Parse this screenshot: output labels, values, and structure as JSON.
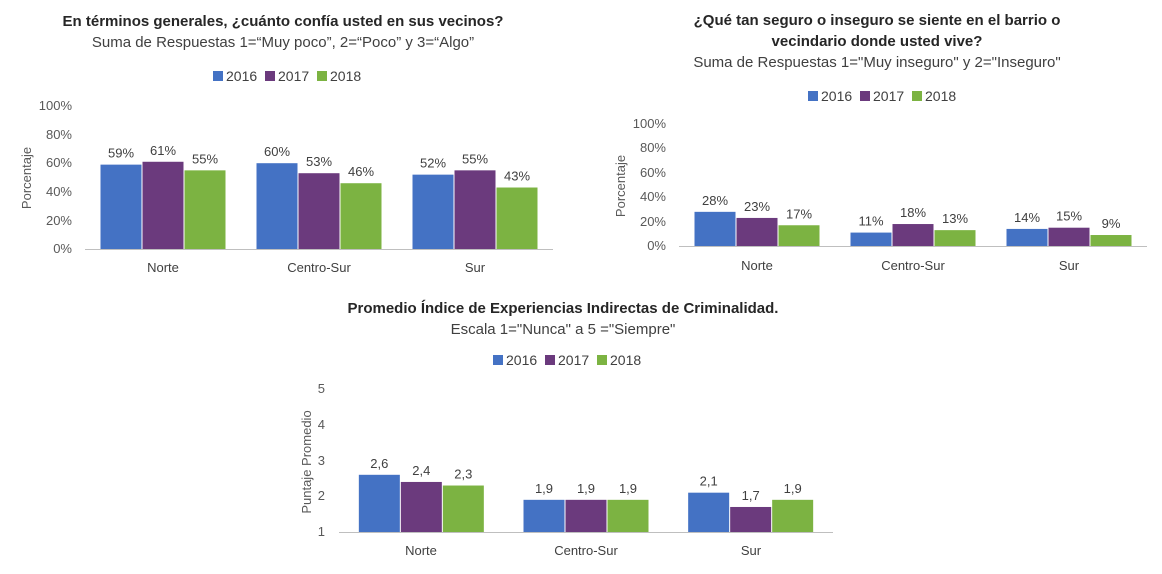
{
  "colors": {
    "2016": "#4472C4",
    "2017": "#6B3A7D",
    "2018": "#7CB342",
    "axis": "#BFBFBF"
  },
  "chart_data": [
    {
      "type": "bar",
      "title": "En términos generales, ¿cuánto confía usted en sus vecinos?",
      "subtitle": "Suma de Respuestas 1=“Muy poco”, 2=“Poco” y 3=“Algo”",
      "ylabel": "Porcentaje",
      "ylim": [
        0,
        100
      ],
      "yticks": [
        "0%",
        "20%",
        "40%",
        "60%",
        "80%",
        "100%"
      ],
      "categories": [
        "Norte",
        "Centro-Sur",
        "Sur"
      ],
      "series": [
        {
          "name": "2016",
          "values": [
            59,
            60,
            52
          ],
          "labels": [
            "59%",
            "60%",
            "52%"
          ]
        },
        {
          "name": "2017",
          "values": [
            61,
            53,
            55
          ],
          "labels": [
            "61%",
            "53%",
            "55%"
          ]
        },
        {
          "name": "2018",
          "values": [
            55,
            46,
            43
          ],
          "labels": [
            "55%",
            "46%",
            "43%"
          ]
        }
      ],
      "legend": "top"
    },
    {
      "type": "bar",
      "title": "¿Qué tan seguro o inseguro se siente en el barrio o",
      "title2": "vecindario donde usted vive?",
      "subtitle": "Suma de Respuestas 1=\"Muy inseguro\" y 2=\"Inseguro\"",
      "ylabel": "Porcentaje",
      "ylim": [
        0,
        100
      ],
      "yticks": [
        "0%",
        "20%",
        "40%",
        "60%",
        "80%",
        "100%"
      ],
      "categories": [
        "Norte",
        "Centro-Sur",
        "Sur"
      ],
      "series": [
        {
          "name": "2016",
          "values": [
            28,
            11,
            14
          ],
          "labels": [
            "28%",
            "11%",
            "14%"
          ]
        },
        {
          "name": "2017",
          "values": [
            23,
            18,
            15
          ],
          "labels": [
            "23%",
            "18%",
            "15%"
          ]
        },
        {
          "name": "2018",
          "values": [
            17,
            13,
            9
          ],
          "labels": [
            "17%",
            "13%",
            "9%"
          ]
        }
      ],
      "legend": "top"
    },
    {
      "type": "bar",
      "title": "Promedio Índice de Experiencias Indirectas de Criminalidad.",
      "subtitle": "Escala 1=\"Nunca\" a 5 =\"Siempre\"",
      "ylabel": "Puntaje Promedio",
      "ylim": [
        1,
        5
      ],
      "yticks": [
        "1",
        "2",
        "3",
        "4",
        "5"
      ],
      "categories": [
        "Norte",
        "Centro-Sur",
        "Sur"
      ],
      "series": [
        {
          "name": "2016",
          "values": [
            2.6,
            1.9,
            2.1
          ],
          "labels": [
            "2,6",
            "1,9",
            "2,1"
          ]
        },
        {
          "name": "2017",
          "values": [
            2.4,
            1.9,
            1.7
          ],
          "labels": [
            "2,4",
            "1,9",
            "1,7"
          ]
        },
        {
          "name": "2018",
          "values": [
            2.3,
            1.9,
            1.9
          ],
          "labels": [
            "2,3",
            "1,9",
            "1,9"
          ]
        }
      ],
      "legend": "top"
    }
  ]
}
